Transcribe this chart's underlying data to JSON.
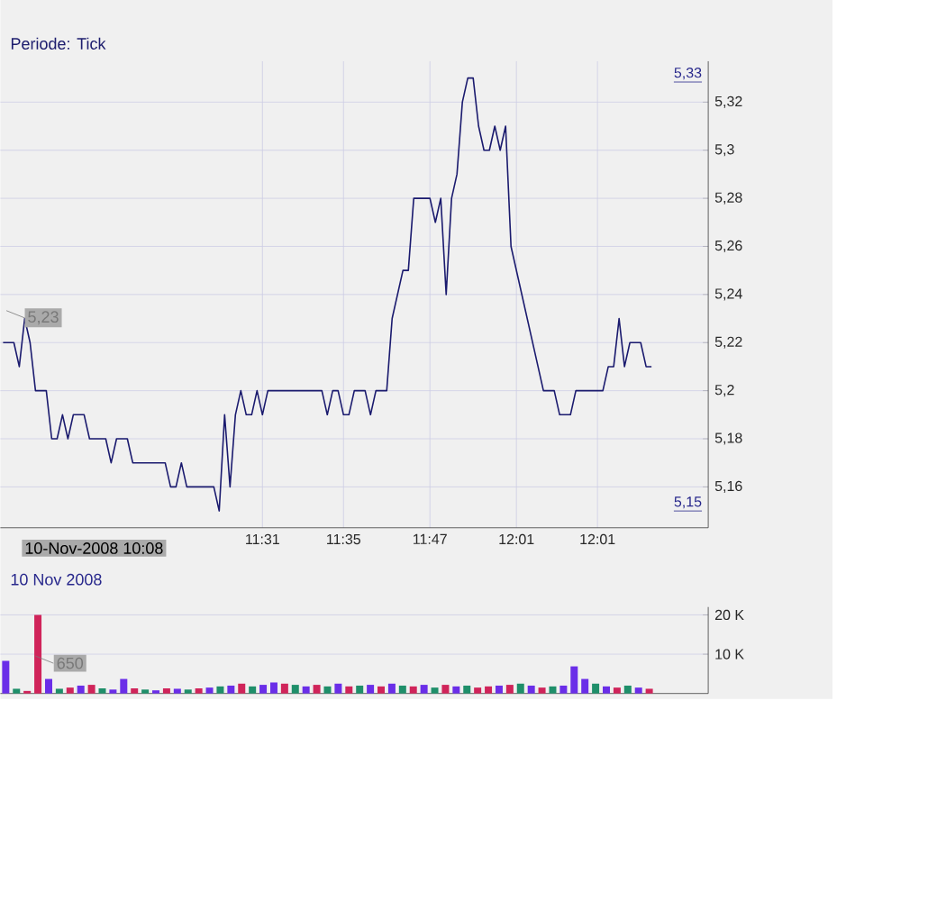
{
  "chart_data": [
    {
      "type": "line",
      "title": "Periode: Tick",
      "categories": [
        null,
        null,
        null,
        null,
        null,
        null,
        null,
        null,
        null,
        null,
        null,
        null,
        null,
        null,
        null,
        null,
        null,
        null,
        null,
        null,
        null,
        null,
        null,
        null,
        null,
        null,
        null,
        null,
        null,
        null,
        null,
        null,
        null,
        null,
        null,
        null,
        null,
        null,
        null,
        null,
        null,
        null,
        null,
        null,
        null,
        null,
        null,
        null,
        "11:31",
        null,
        null,
        null,
        null,
        null,
        null,
        null,
        null,
        null,
        null,
        null,
        null,
        null,
        null,
        "11:35",
        null,
        null,
        null,
        null,
        null,
        null,
        null,
        null,
        null,
        null,
        null,
        null,
        null,
        null,
        null,
        "11:47",
        null,
        null,
        null,
        null,
        null,
        null,
        null,
        null,
        null,
        null,
        null,
        null,
        null,
        null,
        null,
        "12:01",
        null,
        null,
        null,
        null,
        null,
        null,
        null,
        null,
        null,
        null,
        null,
        null,
        null,
        null,
        "12:01",
        null,
        null,
        null,
        null,
        null,
        null,
        null,
        null,
        null,
        null,
        null,
        null,
        null,
        null,
        null,
        null,
        null,
        null,
        null,
        null
      ],
      "series": [
        {
          "color": "#1a1a6e",
          "values": [
            5.22,
            5.22,
            5.22,
            5.21,
            5.23,
            5.22,
            5.2,
            5.2,
            5.2,
            5.18,
            5.18,
            5.19,
            5.18,
            5.19,
            5.19,
            5.19,
            5.18,
            5.18,
            5.18,
            5.18,
            5.17,
            5.18,
            5.18,
            5.18,
            5.17,
            5.17,
            5.17,
            5.17,
            5.17,
            5.17,
            5.17,
            5.16,
            5.16,
            5.17,
            5.16,
            5.16,
            5.16,
            5.16,
            5.16,
            5.16,
            5.15,
            5.19,
            5.16,
            5.19,
            5.2,
            5.19,
            5.19,
            5.2,
            5.19,
            5.2,
            5.2,
            5.2,
            5.2,
            5.2,
            5.2,
            5.2,
            5.2,
            5.2,
            5.2,
            5.2,
            5.19,
            5.2,
            5.2,
            5.19,
            5.19,
            5.2,
            5.2,
            5.2,
            5.19,
            5.2,
            5.2,
            5.2,
            5.23,
            5.24,
            5.25,
            5.25,
            5.28,
            5.28,
            5.28,
            5.28,
            5.27,
            5.28,
            5.24,
            5.28,
            5.29,
            5.32,
            5.33,
            5.33,
            5.31,
            5.3,
            5.3,
            5.31,
            5.3,
            5.31,
            5.26,
            5.25,
            5.24,
            5.23,
            5.22,
            5.21,
            5.2,
            5.2,
            5.2,
            5.19,
            5.19,
            5.19,
            5.2,
            5.2,
            5.2,
            5.2,
            5.2,
            5.2,
            5.21,
            5.21,
            5.23,
            5.21,
            5.22,
            5.22,
            5.22,
            5.21,
            5.21,
            null,
            null,
            null,
            null,
            null,
            null,
            null,
            null,
            null,
            null
          ]
        }
      ],
      "ylim": [
        5.143,
        5.337
      ],
      "yticks": [
        {
          "value": 5.16,
          "label": "5,16"
        },
        {
          "value": 5.18,
          "label": "5,18"
        },
        {
          "value": 5.2,
          "label": "5,2"
        },
        {
          "value": 5.22,
          "label": "5,22"
        },
        {
          "value": 5.24,
          "label": "5,24"
        },
        {
          "value": 5.26,
          "label": "5,26"
        },
        {
          "value": 5.28,
          "label": "5,28"
        },
        {
          "value": 5.3,
          "label": "5,3"
        },
        {
          "value": 5.32,
          "label": "5,32"
        }
      ],
      "grid": true,
      "annotations": [
        "5,33",
        "5,15",
        "5,23",
        "10-Nov-2008 10:08",
        "10 Nov 2008"
      ]
    },
    {
      "type": "bar",
      "categories": [
        null,
        null,
        null,
        null,
        null,
        null,
        null,
        null,
        null,
        null,
        null,
        null,
        null,
        null,
        null,
        null,
        null,
        null,
        null,
        null,
        null,
        null,
        null,
        null,
        null,
        null,
        null,
        null,
        null,
        null,
        null,
        null,
        null,
        null,
        null,
        null,
        null,
        null,
        null,
        null,
        null,
        null,
        null,
        null,
        null,
        null,
        null,
        null,
        null,
        null,
        null,
        null,
        null,
        null,
        null,
        null,
        null,
        null,
        null,
        null,
        null,
        null,
        null,
        null,
        null,
        null
      ],
      "values": [
        8.3,
        1.2,
        0.65,
        20,
        3.7,
        1.2,
        1.5,
        2,
        2.2,
        1.3,
        1,
        3.7,
        1.3,
        1,
        0.8,
        1.3,
        1.2,
        1,
        1.3,
        1.5,
        1.8,
        2,
        2.5,
        1.8,
        2.2,
        2.8,
        2.5,
        2.2,
        1.8,
        2.2,
        1.8,
        2.5,
        1.8,
        2,
        2.2,
        1.8,
        2.5,
        2,
        1.8,
        2.2,
        1.5,
        2.2,
        1.8,
        2,
        1.5,
        1.8,
        2,
        2.2,
        2.5,
        2,
        1.5,
        1.8,
        2,
        6.9,
        3.7,
        2.5,
        1.8,
        1.5,
        2,
        1.5,
        1.2,
        null,
        null,
        null,
        null,
        null
      ],
      "colors": [
        "#6a2ee8",
        "#1f8f6a",
        "#d0245a",
        "#d0245a",
        "#6a2ee8",
        "#1f8f6a",
        "#d0245a",
        "#6a2ee8",
        "#d0245a",
        "#1f8f6a",
        "#6a2ee8",
        "#6a2ee8",
        "#d0245a",
        "#1f8f6a",
        "#6a2ee8",
        "#d0245a",
        "#6a2ee8",
        "#1f8f6a",
        "#d0245a",
        "#6a2ee8",
        "#1f8f6a",
        "#6a2ee8",
        "#d0245a",
        "#1f8f6a",
        "#6a2ee8",
        "#6a2ee8",
        "#d0245a",
        "#1f8f6a",
        "#6a2ee8",
        "#d0245a",
        "#1f8f6a",
        "#6a2ee8",
        "#d0245a",
        "#1f8f6a",
        "#6a2ee8",
        "#d0245a",
        "#6a2ee8",
        "#1f8f6a",
        "#d0245a",
        "#6a2ee8",
        "#1f8f6a",
        "#d0245a",
        "#6a2ee8",
        "#1f8f6a",
        "#d0245a",
        "#d0245a",
        "#6a2ee8",
        "#d0245a",
        "#1f8f6a",
        "#6a2ee8",
        "#d0245a",
        "#1f8f6a",
        "#6a2ee8",
        "#6a2ee8",
        "#6a2ee8",
        "#1f8f6a",
        "#6a2ee8",
        "#d0245a",
        "#1f8f6a",
        "#6a2ee8",
        "#d0245a",
        null,
        null,
        null,
        null,
        null
      ],
      "ylim": [
        0,
        22
      ],
      "yticks": [
        {
          "value": 10,
          "label": "10 K"
        },
        {
          "value": 20,
          "label": "20 K"
        }
      ],
      "grid": true,
      "tick_labels": "y",
      "annotations": [
        "650"
      ]
    }
  ]
}
